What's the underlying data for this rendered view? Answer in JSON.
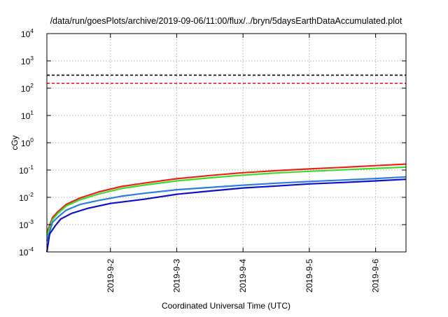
{
  "chart_data": {
    "type": "line",
    "title": "/data/run/goesPlots/archive/2019-09-06/11:00/flux/../bryn/5daysEarthDataAccumulated.plot",
    "xlabel": "Coordinated Universal Time (UTC)",
    "ylabel": "cGy",
    "y_scale": "log",
    "ylim": [
      0.0001,
      10000
    ],
    "xlim": [
      "2019-09-01T01:00",
      "2019-09-06T11:00"
    ],
    "grid": true,
    "legend": "none",
    "x_ticks": [
      "2019-9-2",
      "2019-9-3",
      "2019-9-4",
      "2019-9-5",
      "2019-9-6"
    ],
    "y_ticks": [
      {
        "base": "10",
        "exp": "-4",
        "value": 0.0001
      },
      {
        "base": "10",
        "exp": "-3",
        "value": 0.001
      },
      {
        "base": "10",
        "exp": "-2",
        "value": 0.01
      },
      {
        "base": "10",
        "exp": "-1",
        "value": 0.1
      },
      {
        "base": "10",
        "exp": "0",
        "value": 1
      },
      {
        "base": "10",
        "exp": "1",
        "value": 10
      },
      {
        "base": "10",
        "exp": "2",
        "value": 100
      },
      {
        "base": "10",
        "exp": "3",
        "value": 1000
      },
      {
        "base": "10",
        "exp": "4",
        "value": 10000
      }
    ],
    "reference_lines": [
      {
        "color": "#000000",
        "value": 300,
        "style": "dashed"
      },
      {
        "color": "#ff0000",
        "value": 150,
        "style": "dashed"
      }
    ],
    "series": [
      {
        "color": "#e8231d",
        "x": [
          "2019-09-01T01:00",
          "2019-09-01T03:00",
          "2019-09-01T05:00",
          "2019-09-01T08:00",
          "2019-09-01T13:00",
          "2019-09-01T20:00",
          "2019-09-02T04:00",
          "2019-09-02T12:00",
          "2019-09-03T00:00",
          "2019-09-03T12:00",
          "2019-09-04T00:00",
          "2019-09-04T12:00",
          "2019-09-05T00:00",
          "2019-09-05T12:00",
          "2019-09-06T00:00",
          "2019-09-06T11:00"
        ],
        "y": [
          0.0005,
          0.0018,
          0.003,
          0.0055,
          0.0095,
          0.016,
          0.025,
          0.033,
          0.048,
          0.063,
          0.08,
          0.095,
          0.11,
          0.125,
          0.145,
          0.165
        ]
      },
      {
        "color": "#3ddc2a",
        "x": [
          "2019-09-01T01:00",
          "2019-09-01T03:00",
          "2019-09-01T05:00",
          "2019-09-01T08:00",
          "2019-09-01T13:00",
          "2019-09-01T20:00",
          "2019-09-02T04:00",
          "2019-09-02T12:00",
          "2019-09-03T00:00",
          "2019-09-03T12:00",
          "2019-09-04T00:00",
          "2019-09-04T12:00",
          "2019-09-05T00:00",
          "2019-09-05T12:00",
          "2019-09-06T00:00",
          "2019-09-06T11:00"
        ],
        "y": [
          0.0004,
          0.0015,
          0.0026,
          0.0048,
          0.0082,
          0.0135,
          0.021,
          0.028,
          0.04,
          0.052,
          0.065,
          0.078,
          0.09,
          0.102,
          0.115,
          0.128
        ]
      },
      {
        "color": "#2a7fe0",
        "x": [
          "2019-09-01T01:00",
          "2019-09-01T03:00",
          "2019-09-01T05:00",
          "2019-09-01T08:00",
          "2019-09-01T13:00",
          "2019-09-01T20:00",
          "2019-09-02T04:00",
          "2019-09-02T12:00",
          "2019-09-03T00:00",
          "2019-09-03T12:00",
          "2019-09-04T00:00",
          "2019-09-04T12:00",
          "2019-09-05T00:00",
          "2019-09-05T12:00",
          "2019-09-06T00:00",
          "2019-09-06T11:00"
        ],
        "y": [
          0.00025,
          0.0012,
          0.0019,
          0.0034,
          0.0055,
          0.0078,
          0.011,
          0.014,
          0.019,
          0.023,
          0.028,
          0.033,
          0.038,
          0.043,
          0.049,
          0.056
        ]
      },
      {
        "color": "#1010cc",
        "x": [
          "2019-09-01T01:00",
          "2019-09-01T02:00",
          "2019-09-01T04:00",
          "2019-09-01T06:00",
          "2019-09-01T10:00",
          "2019-09-01T16:00",
          "2019-09-02T00:00",
          "2019-09-02T12:00",
          "2019-09-03T00:00",
          "2019-09-03T12:00",
          "2019-09-04T00:00",
          "2019-09-04T12:00",
          "2019-09-05T00:00",
          "2019-09-05T12:00",
          "2019-09-06T00:00",
          "2019-09-06T11:00"
        ],
        "y": [
          0.0001,
          0.00045,
          0.0009,
          0.0016,
          0.0026,
          0.004,
          0.006,
          0.0085,
          0.013,
          0.017,
          0.022,
          0.026,
          0.031,
          0.035,
          0.04,
          0.046
        ]
      }
    ]
  }
}
